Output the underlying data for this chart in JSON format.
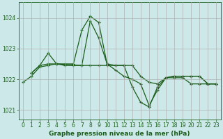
{
  "title": "Graphe pression niveau de la mer (hPa)",
  "bg_color": "#cce8e8",
  "grid_color": "#b0b0b0",
  "line_color": "#1a5e1a",
  "ylim": [
    1020.7,
    1024.5
  ],
  "yticks": [
    1021,
    1022,
    1023,
    1024
  ],
  "xlim": [
    -0.5,
    23.5
  ],
  "xticks": [
    0,
    1,
    2,
    3,
    4,
    5,
    6,
    7,
    8,
    9,
    10,
    11,
    12,
    13,
    14,
    15,
    16,
    17,
    18,
    19,
    20,
    21,
    22,
    23
  ],
  "series": [
    {
      "x": [
        0,
        1,
        2,
        3,
        4,
        5,
        6,
        7,
        8,
        9,
        10,
        11,
        12,
        13,
        14,
        15,
        16,
        17,
        18,
        19,
        20,
        21,
        22,
        23
      ],
      "y": [
        1021.9,
        1022.1,
        1022.4,
        1022.45,
        1022.5,
        1022.5,
        1022.5,
        1023.6,
        1024.05,
        1023.85,
        1022.5,
        1022.3,
        1022.1,
        1022.0,
        1021.85,
        1021.15,
        1021.65,
        1022.05,
        1022.1,
        1022.1,
        1022.1,
        1022.1,
        1021.85,
        1021.85
      ]
    },
    {
      "x": [
        1,
        2,
        3,
        4,
        7,
        8,
        9,
        10,
        11,
        12,
        13,
        14,
        15,
        16,
        17,
        18,
        19,
        20,
        21,
        22,
        23
      ],
      "y": [
        1022.2,
        1022.45,
        1022.85,
        1022.5,
        1022.45,
        1023.9,
        1023.35,
        1022.5,
        1022.45,
        1022.45,
        1021.75,
        1021.25,
        1021.1,
        1021.75,
        1022.05,
        1022.1,
        1022.1,
        1022.1,
        1022.1,
        1021.85,
        1021.85
      ]
    },
    {
      "x": [
        1,
        2,
        3,
        4,
        5,
        6,
        7,
        8,
        9,
        10,
        11,
        12,
        13,
        14,
        15,
        16,
        17,
        18,
        19,
        20,
        21,
        22,
        23
      ],
      "y": [
        1022.2,
        1022.45,
        1022.5,
        1022.5,
        1022.45,
        1022.45,
        1022.45,
        1022.45,
        1022.45,
        1022.45,
        1022.45,
        1022.45,
        1022.45,
        1022.1,
        1021.9,
        1021.85,
        1022.05,
        1022.05,
        1022.05,
        1021.85,
        1021.85,
        1021.85,
        1021.85
      ]
    }
  ],
  "marker": "+",
  "markersize": 3.5,
  "linewidth": 0.9,
  "tick_fontsize": 5.5,
  "xlabel_fontsize": 6.5
}
